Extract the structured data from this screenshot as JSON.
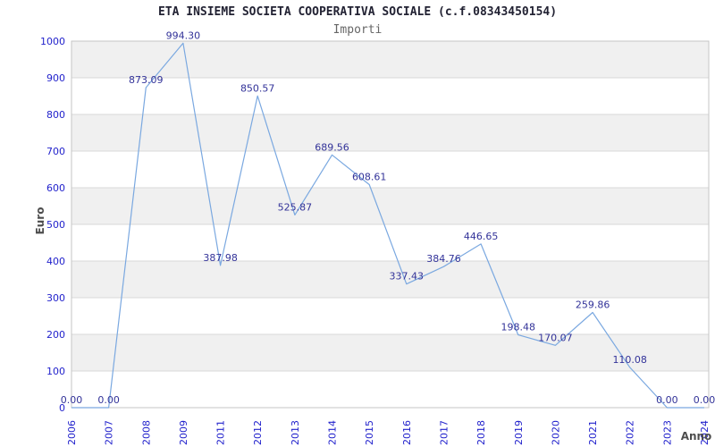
{
  "chart_data": {
    "type": "line",
    "title": "ETA INSIEME SOCIETA COOPERATIVA SOCIALE (c.f.08343450154)",
    "subtitle": "Importi",
    "xlabel": "Anno",
    "ylabel": "Euro",
    "ylim": [
      0,
      1000
    ],
    "y_tick_interval": 100,
    "y_tick_labels": [
      "0",
      "100",
      "200",
      "300",
      "400",
      "500",
      "600",
      "700",
      "800",
      "900",
      "1000"
    ],
    "categories": [
      "2006",
      "2007",
      "2008",
      "2009",
      "2011",
      "2012",
      "2013",
      "2014",
      "2015",
      "2016",
      "2017",
      "2018",
      "2019",
      "2020",
      "2021",
      "2022",
      "2023",
      "2024"
    ],
    "values": [
      0.0,
      0.0,
      873.09,
      994.3,
      387.98,
      850.57,
      525.87,
      689.56,
      608.61,
      337.43,
      384.76,
      446.65,
      198.48,
      170.07,
      259.86,
      110.08,
      0.0,
      0.0
    ],
    "value_labels": [
      "0.00",
      "0.00",
      "873.09",
      "994.30",
      "387.98",
      "850.57",
      "525.87",
      "689.56",
      "608.61",
      "337.43",
      "384.76",
      "446.65",
      "198.48",
      "170.07",
      "259.86",
      "110.08",
      "0.00",
      "0.00"
    ],
    "legend": "none",
    "grid": "horizontal-bands",
    "colors": {
      "line": "#7aa8e0",
      "tick_label": "#2222cc",
      "data_label": "#333399",
      "band_fill": "#f0f0f0",
      "gridline": "#d9d9d9",
      "plot_border": "#c6c6c6",
      "title": "#222233",
      "subtitle": "#666666",
      "axis_title": "#4d4d4d",
      "background": "#ffffff"
    }
  }
}
